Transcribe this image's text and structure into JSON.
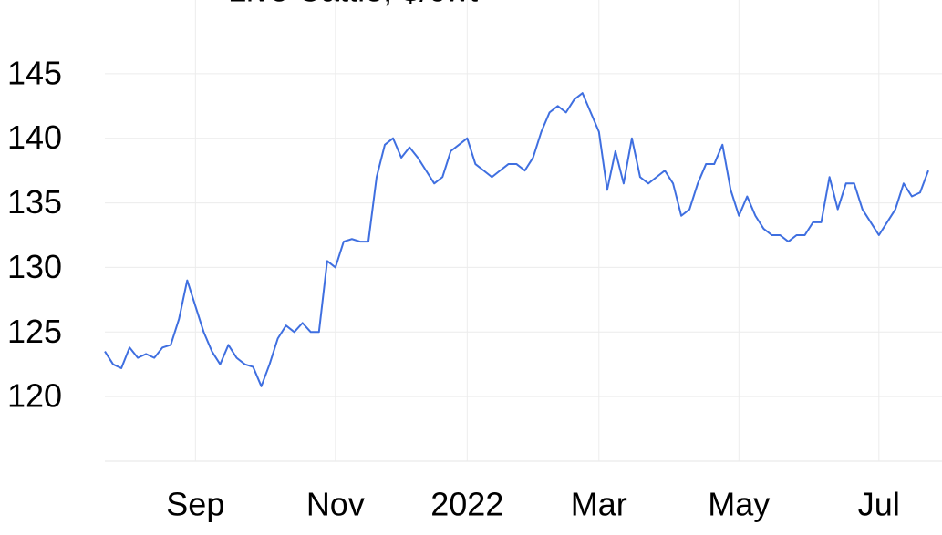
{
  "chart_data": {
    "type": "line",
    "title": "Live Cattle, $/cwt",
    "categories": [
      null,
      null,
      null,
      null,
      null,
      null,
      null,
      null,
      null,
      null,
      null,
      "Sep",
      null,
      null,
      null,
      null,
      null,
      null,
      null,
      null,
      null,
      null,
      null,
      null,
      null,
      null,
      null,
      null,
      "Nov",
      null,
      null,
      null,
      null,
      null,
      null,
      null,
      null,
      null,
      null,
      null,
      null,
      null,
      null,
      null,
      "2022",
      null,
      null,
      null,
      null,
      null,
      null,
      null,
      null,
      null,
      null,
      null,
      null,
      null,
      null,
      null,
      "Mar",
      null,
      null,
      null,
      null,
      null,
      null,
      null,
      null,
      null,
      null,
      null,
      null,
      null,
      null,
      null,
      null,
      "May",
      null,
      null,
      null,
      null,
      null,
      null,
      null,
      null,
      null,
      null,
      null,
      null,
      null,
      null,
      null,
      null,
      "Jul",
      null,
      null,
      null,
      null,
      null,
      null
    ],
    "series": [
      {
        "name": "Live Cattle",
        "color": "#3f6fe0",
        "values": [
          123.5,
          122.5,
          122.2,
          123.8,
          123,
          123.3,
          123,
          123.8,
          124,
          126,
          129,
          127,
          125,
          123.5,
          122.5,
          124,
          123,
          122.5,
          122.3,
          120.8,
          122.5,
          124.5,
          125.5,
          125,
          125.7,
          125,
          125,
          130.5,
          130,
          132,
          132.2,
          132,
          132,
          137,
          139.5,
          140,
          138.5,
          139.3,
          138.5,
          137.5,
          136.5,
          137,
          139,
          139.5,
          140,
          138,
          137.5,
          137,
          137.5,
          138,
          138,
          137.5,
          138.5,
          140.5,
          142,
          142.5,
          142,
          143,
          143.5,
          142,
          140.5,
          136,
          139,
          136.5,
          140,
          137,
          136.5,
          137,
          137.5,
          136.5,
          134,
          134.5,
          136.5,
          138,
          138,
          139.5,
          136,
          134,
          135.5,
          134,
          133,
          132.5,
          132.5,
          132,
          132.5,
          132.5,
          133.5,
          133.5,
          137,
          134.5,
          136.5,
          136.5,
          134.5,
          133.5,
          132.5,
          133.5,
          134.5,
          136.5,
          135.5,
          135.8,
          137.5
        ]
      }
    ],
    "ylim": [
      115,
      150
    ],
    "yticks": [
      120,
      125,
      130,
      135,
      140,
      145
    ],
    "grid": true
  }
}
